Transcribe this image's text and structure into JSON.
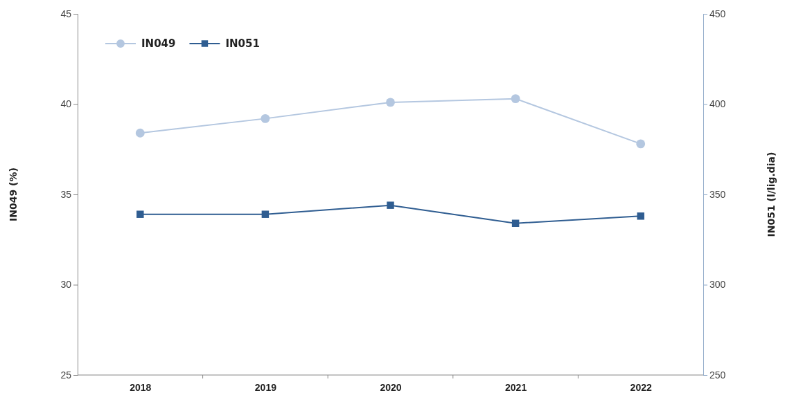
{
  "chart_data": {
    "type": "line",
    "categories": [
      "2018",
      "2019",
      "2020",
      "2021",
      "2022"
    ],
    "ylabel": "IN049 (%)",
    "y2label": "IN051 (l/lig.dia)",
    "ylim": [
      25,
      45
    ],
    "yticks": [
      25,
      30,
      35,
      40,
      45
    ],
    "y2lim": [
      250,
      450
    ],
    "y2ticks": [
      250,
      300,
      350,
      400,
      450
    ],
    "series": [
      {
        "name": "IN049",
        "color": "#b4c7e0",
        "marker": "circle",
        "values": [
          38.4,
          39.2,
          40.1,
          40.3,
          37.8
        ]
      },
      {
        "name": "IN051",
        "color": "#2f5d91",
        "marker": "square",
        "axis": "y2",
        "values": [
          339,
          339,
          344,
          334,
          338
        ]
      }
    ],
    "legend": "top left",
    "grid": false
  }
}
